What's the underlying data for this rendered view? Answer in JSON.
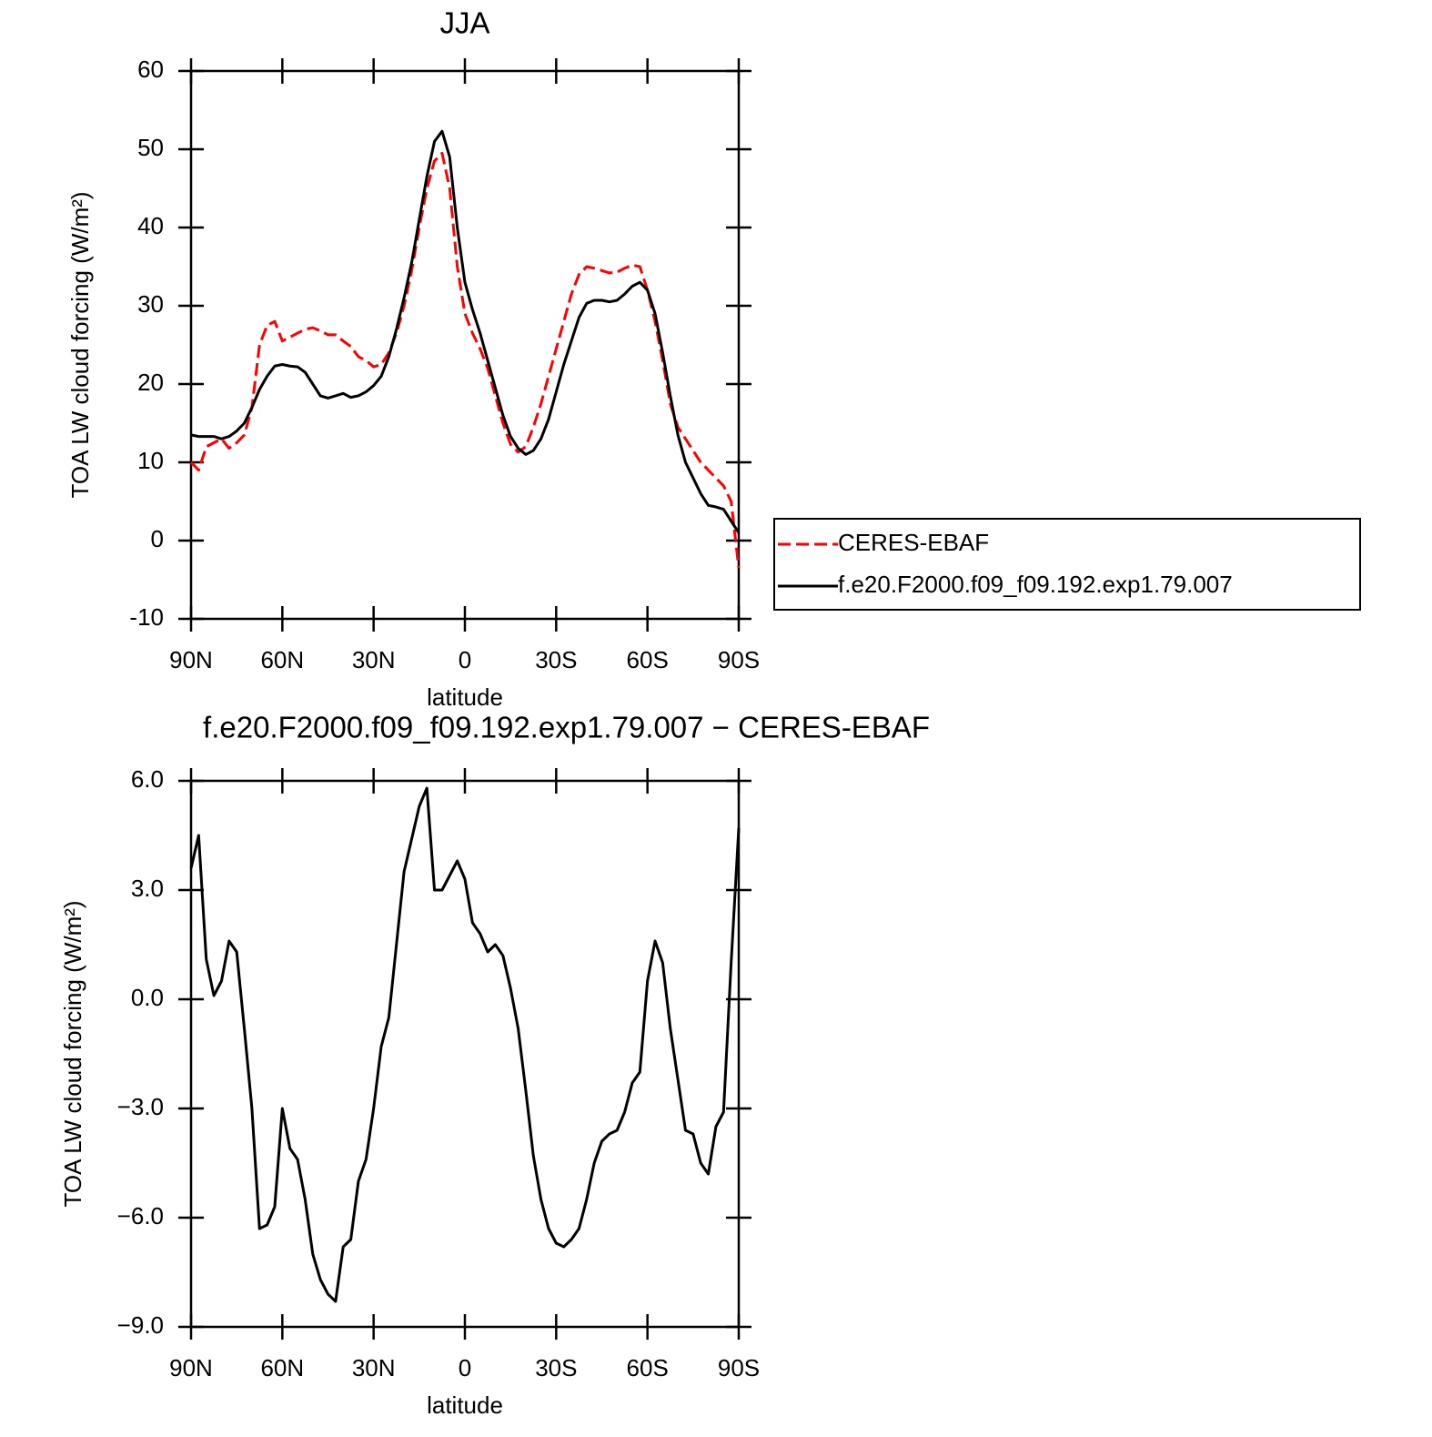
{
  "chart_data": [
    {
      "type": "line",
      "title": "JJA",
      "xlabel": "latitude",
      "ylabel": "TOA LW cloud forcing (W/m²)",
      "x": [
        90,
        87.5,
        85,
        82.5,
        80,
        77.5,
        75,
        72.5,
        70,
        67.5,
        65,
        62.5,
        60,
        57.5,
        55,
        52.5,
        50,
        47.5,
        45,
        42.5,
        40,
        37.5,
        35,
        32.5,
        30,
        27.5,
        25,
        22.5,
        20,
        17.5,
        15,
        12.5,
        10,
        7.5,
        5,
        2.5,
        0,
        -2.5,
        -5,
        -7.5,
        -10,
        -12.5,
        -15,
        -17.5,
        -20,
        -22.5,
        -25,
        -27.5,
        -30,
        -32.5,
        -35,
        -37.5,
        -40,
        -42.5,
        -45,
        -47.5,
        -50,
        -52.5,
        -55,
        -57.5,
        -60,
        -62.5,
        -65,
        -67.5,
        -70,
        -72.5,
        -75,
        -77.5,
        -80,
        -82.5,
        -85,
        -87.5,
        -90
      ],
      "xlim": [
        90,
        -90
      ],
      "xticks": [
        {
          "value": 90,
          "label": "90N"
        },
        {
          "value": 60,
          "label": "60N"
        },
        {
          "value": 30,
          "label": "30N"
        },
        0,
        {
          "value": -30,
          "label": "30S"
        },
        {
          "value": -60,
          "label": "60S"
        },
        {
          "value": -90,
          "label": "90S"
        }
      ],
      "ylim": [
        -10,
        60
      ],
      "yticks": [
        -10,
        0,
        10,
        20,
        30,
        40,
        50,
        60
      ],
      "legend": "outside right",
      "series": [
        {
          "name": "CERES-EBAF",
          "color": "#ff0000",
          "line_style": "dashed",
          "values": [
            10,
            9,
            12,
            12.5,
            13,
            11.8,
            12.5,
            13.5,
            17,
            25,
            27.5,
            28,
            25.5,
            26,
            26.5,
            27,
            27.2,
            26.8,
            26.3,
            26.3,
            25.5,
            24.8,
            23.5,
            23,
            22.2,
            22.5,
            24,
            26.5,
            30,
            34.5,
            40,
            45,
            48.5,
            49.5,
            45,
            35,
            29,
            26.5,
            24.5,
            22,
            18.5,
            15,
            12.3,
            11.3,
            12,
            14.5,
            17.5,
            21,
            24.5,
            28,
            31.5,
            34,
            35,
            34.8,
            34.5,
            34.2,
            34.3,
            34.8,
            35.2,
            35,
            32,
            28,
            23,
            17.5,
            14.5,
            13,
            11.5,
            10,
            9,
            8,
            7,
            5,
            -3.5
          ]
        },
        {
          "name": "f.e20.F2000.f09_f09.192.exp1.79.007",
          "color": "#000000",
          "line_style": "solid",
          "values": [
            13.5,
            13.3,
            13.3,
            13.3,
            13,
            13.3,
            14,
            15,
            17,
            19.3,
            21,
            22.3,
            22.5,
            22.3,
            22.2,
            21.5,
            20,
            18.5,
            18.2,
            18.5,
            18.8,
            18.3,
            18.5,
            19,
            19.8,
            21,
            23.5,
            27,
            31,
            35.5,
            41,
            46.5,
            51,
            52.3,
            49,
            40,
            33,
            29.5,
            26.5,
            23,
            19.5,
            16,
            13.3,
            11.8,
            11,
            11.5,
            13,
            15.5,
            19,
            22.5,
            25.5,
            28.5,
            30.3,
            30.7,
            30.7,
            30.5,
            30.7,
            31.5,
            32.5,
            33,
            32,
            29,
            24,
            18.5,
            13.5,
            10,
            8,
            6,
            4.5,
            4.3,
            4,
            2.5,
            1
          ]
        }
      ]
    },
    {
      "type": "line",
      "title": "f.e20.F2000.f09_f09.192.exp1.79.007 − CERES-EBAF",
      "xlabel": "latitude",
      "ylabel": "TOA LW cloud forcing (W/m²)",
      "x": [
        90,
        87.5,
        85,
        82.5,
        80,
        77.5,
        75,
        72.5,
        70,
        67.5,
        65,
        62.5,
        60,
        57.5,
        55,
        52.5,
        50,
        47.5,
        45,
        42.5,
        40,
        37.5,
        35,
        32.5,
        30,
        27.5,
        25,
        22.5,
        20,
        17.5,
        15,
        12.5,
        10,
        7.5,
        5,
        2.5,
        0,
        -2.5,
        -5,
        -7.5,
        -10,
        -12.5,
        -15,
        -17.5,
        -20,
        -22.5,
        -25,
        -27.5,
        -30,
        -32.5,
        -35,
        -37.5,
        -40,
        -42.5,
        -45,
        -47.5,
        -50,
        -52.5,
        -55,
        -57.5,
        -60,
        -62.5,
        -65,
        -67.5,
        -70,
        -72.5,
        -75,
        -77.5,
        -80,
        -82.5,
        -85,
        -87.5,
        -90
      ],
      "xlim": [
        90,
        -90
      ],
      "xticks": [
        {
          "value": 90,
          "label": "90N"
        },
        {
          "value": 60,
          "label": "60N"
        },
        {
          "value": 30,
          "label": "30N"
        },
        0,
        {
          "value": -30,
          "label": "30S"
        },
        {
          "value": -60,
          "label": "60S"
        },
        {
          "value": -90,
          "label": "90S"
        }
      ],
      "ylim": [
        -9,
        6
      ],
      "yticks": [
        {
          "value": -9,
          "label": "−9.0"
        },
        {
          "value": -6,
          "label": "−6.0"
        },
        {
          "value": -3,
          "label": "−3.0"
        },
        {
          "value": 0,
          "label": "0.0"
        },
        {
          "value": 3,
          "label": "3.0"
        },
        {
          "value": 6,
          "label": "6.0"
        }
      ],
      "series": [
        {
          "color": "#000000",
          "line_style": "solid",
          "values": [
            3.6,
            4.5,
            1.1,
            0.1,
            0.5,
            1.6,
            1.3,
            -0.8,
            -3,
            -6.3,
            -6.2,
            -5.7,
            -3,
            -4.1,
            -4.4,
            -5.5,
            -7,
            -7.7,
            -8.1,
            -8.3,
            -6.8,
            -6.6,
            -5,
            -4.4,
            -3,
            -1.3,
            -0.5,
            1.5,
            3.5,
            4.4,
            5.3,
            5.8,
            3,
            3,
            3.4,
            3.8,
            3.3,
            2.1,
            1.8,
            1.3,
            1.5,
            1.2,
            0.3,
            -0.8,
            -2.5,
            -4.3,
            -5.5,
            -6.3,
            -6.7,
            -6.8,
            -6.6,
            -6.3,
            -5.5,
            -4.5,
            -3.9,
            -3.7,
            -3.6,
            -3.1,
            -2.3,
            -2,
            0.5,
            1.6,
            1,
            -0.8,
            -2.2,
            -3.6,
            -3.7,
            -4.5,
            -4.8,
            -3.5,
            -3.1,
            1,
            4.7
          ]
        }
      ]
    }
  ]
}
